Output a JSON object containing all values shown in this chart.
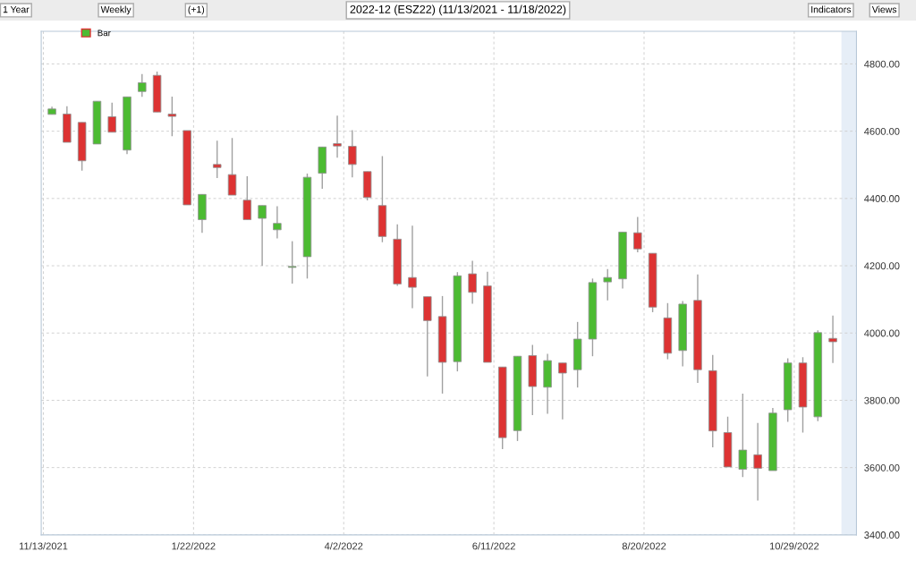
{
  "chart_data": {
    "type": "candlestick",
    "title": "2022-12 (ESZ22) (11/13/2021 - 11/18/2022)",
    "annotations": [
      "1 Year",
      "Weekly",
      "(+1)",
      "Indicators",
      "Views"
    ],
    "x": [
      "2021-11-17",
      "2021-11-24",
      "2021-12-01",
      "2021-12-08",
      "2021-12-15",
      "2021-12-22",
      "2021-12-29",
      "2022-01-05",
      "2022-01-12",
      "2022-01-19",
      "2022-01-26",
      "2022-02-02",
      "2022-02-09",
      "2022-02-16",
      "2022-02-23",
      "2022-03-02",
      "2022-03-09",
      "2022-03-16",
      "2022-03-23",
      "2022-03-30",
      "2022-04-06",
      "2022-04-13",
      "2022-04-20",
      "2022-04-27",
      "2022-05-04",
      "2022-05-11",
      "2022-05-18",
      "2022-05-25",
      "2022-06-01",
      "2022-06-08",
      "2022-06-15",
      "2022-06-22",
      "2022-06-29",
      "2022-07-06",
      "2022-07-13",
      "2022-07-20",
      "2022-07-27",
      "2022-08-03",
      "2022-08-10",
      "2022-08-17",
      "2022-08-24",
      "2022-08-31",
      "2022-09-07",
      "2022-09-14",
      "2022-09-21",
      "2022-09-28",
      "2022-10-05",
      "2022-10-12",
      "2022-10-19",
      "2022-10-26",
      "2022-11-02",
      "2022-11-09",
      "2022-11-16"
    ],
    "series": [
      {
        "name": "Bar",
        "ohlc": [
          [
            4650,
            4673,
            4650,
            4666
          ],
          [
            4651,
            4674,
            4567,
            4567
          ],
          [
            4626,
            4626,
            4483,
            4512
          ],
          [
            4562,
            4689,
            4562,
            4689
          ],
          [
            4643,
            4685,
            4597,
            4597
          ],
          [
            4544,
            4702,
            4532,
            4702
          ],
          [
            4718,
            4770,
            4702,
            4744
          ],
          [
            4766,
            4777,
            4657,
            4657
          ],
          [
            4651,
            4703,
            4585,
            4644
          ],
          [
            4602,
            4602,
            4381,
            4381
          ],
          [
            4337,
            4412,
            4298,
            4412
          ],
          [
            4501,
            4572,
            4461,
            4492
          ],
          [
            4471,
            4580,
            4410,
            4410
          ],
          [
            4395,
            4466,
            4337,
            4337
          ],
          [
            4341,
            4379,
            4200,
            4379
          ],
          [
            4307,
            4377,
            4281,
            4326
          ],
          [
            4195,
            4273,
            4147,
            4198
          ],
          [
            4227,
            4474,
            4162,
            4463
          ],
          [
            4475,
            4553,
            4429,
            4553
          ],
          [
            4563,
            4646,
            4521,
            4556
          ],
          [
            4555,
            4603,
            4463,
            4501
          ],
          [
            4480,
            4480,
            4394,
            4403
          ],
          [
            4379,
            4526,
            4270,
            4287
          ],
          [
            4279,
            4323,
            4140,
            4146
          ],
          [
            4165,
            4319,
            4074,
            4136
          ],
          [
            4108,
            4108,
            3871,
            4037
          ],
          [
            4049,
            4110,
            3820,
            3913
          ],
          [
            3915,
            4181,
            3886,
            4170
          ],
          [
            4176,
            4215,
            4087,
            4121
          ],
          [
            4140,
            4182,
            3913,
            3913
          ],
          [
            3899,
            3899,
            3655,
            3689
          ],
          [
            3710,
            3931,
            3679,
            3931
          ],
          [
            3933,
            3965,
            3756,
            3841
          ],
          [
            3839,
            3938,
            3760,
            3918
          ],
          [
            3911,
            3911,
            3743,
            3881
          ],
          [
            3891,
            4033,
            3838,
            3982
          ],
          [
            3982,
            4162,
            3931,
            4150
          ],
          [
            4152,
            4190,
            4097,
            4165
          ],
          [
            4161,
            4300,
            4132,
            4300
          ],
          [
            4298,
            4345,
            4240,
            4250
          ],
          [
            4237,
            4237,
            4062,
            4077
          ],
          [
            4045,
            4089,
            3922,
            3940
          ],
          [
            3948,
            4095,
            3901,
            4086
          ],
          [
            4097,
            4174,
            3852,
            3891
          ],
          [
            3888,
            3935,
            3660,
            3709
          ],
          [
            3704,
            3751,
            3602,
            3602
          ],
          [
            3595,
            3820,
            3572,
            3652
          ],
          [
            3638,
            3733,
            3502,
            3598
          ],
          [
            3591,
            3777,
            3591,
            3762
          ],
          [
            3772,
            3925,
            3736,
            3911
          ],
          [
            3911,
            3928,
            3704,
            3780
          ],
          [
            3751,
            4008,
            3738,
            4001
          ],
          [
            3984,
            4052,
            3911,
            3974
          ]
        ],
        "colors": [
          "#4cbb32",
          "#dd3333",
          "#dd3333",
          "#4cbb32",
          "#dd3333",
          "#4cbb32",
          "#4cbb32",
          "#dd3333",
          "#dd3333",
          "#dd3333",
          "#4cbb32",
          "#dd3333",
          "#dd3333",
          "#dd3333",
          "#4cbb32",
          "#4cbb32",
          "#4cbb32",
          "#4cbb32",
          "#4cbb32",
          "#dd3333",
          "#dd3333",
          "#dd3333",
          "#dd3333",
          "#dd3333",
          "#dd3333",
          "#dd3333",
          "#dd3333",
          "#4cbb32",
          "#dd3333",
          "#dd3333",
          "#dd3333",
          "#4cbb32",
          "#dd3333",
          "#4cbb32",
          "#dd3333",
          "#4cbb32",
          "#4cbb32",
          "#4cbb32",
          "#4cbb32",
          "#dd3333",
          "#dd3333",
          "#dd3333",
          "#4cbb32",
          "#dd3333",
          "#dd3333",
          "#dd3333",
          "#4cbb32",
          "#dd3333",
          "#4cbb32",
          "#4cbb32",
          "#dd3333",
          "#4cbb32",
          "#dd3333"
        ]
      }
    ],
    "xlim": [
      "2021-11-12",
      "2022-11-27"
    ],
    "xticks": [
      {
        "value": "2021-11-13",
        "label": "11/13/2021"
      },
      {
        "value": "2022-01-22",
        "label": "1/22/2022"
      },
      {
        "value": "2022-04-02",
        "label": "4/2/2022"
      },
      {
        "value": "2022-06-11",
        "label": "6/11/2022"
      },
      {
        "value": "2022-08-20",
        "label": "8/20/2022"
      },
      {
        "value": "2022-10-29",
        "label": "10/29/2022"
      }
    ],
    "ylim": [
      3400,
      4897
    ],
    "yticks": [
      {
        "value": 3400,
        "label": "3400.00"
      },
      {
        "value": 3600,
        "label": "3600.00"
      },
      {
        "value": 3800,
        "label": "3800.00"
      },
      {
        "value": 4000,
        "label": "4000.00"
      },
      {
        "value": 4200,
        "label": "4200.00"
      },
      {
        "value": 4400,
        "label": "4400.00"
      },
      {
        "value": 4600,
        "label": "4600.00"
      },
      {
        "value": 4800,
        "label": "4800.00"
      }
    ],
    "bands": [
      {
        "axis": "x",
        "from": "2022-11-20",
        "to": "2022-11-27",
        "color": "#e6eef7"
      }
    ],
    "grid": true,
    "legend": "top left"
  }
}
